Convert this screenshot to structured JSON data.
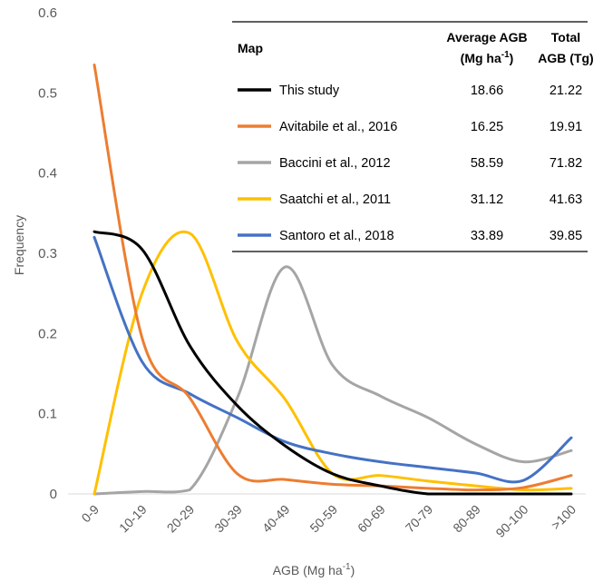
{
  "chart_data": {
    "type": "line",
    "xlabel": "AGB (Mg ha",
    "xlabel_sup": "-1",
    "xlabel_close": ")",
    "ylabel": "Frequency",
    "ylim": [
      0,
      0.6
    ],
    "yticks": [
      "0",
      "0.1",
      "0.2",
      "0.3",
      "0.4",
      "0.5",
      "0.6"
    ],
    "categories": [
      "0-9",
      "10-19",
      "20-29",
      "30-39",
      "40-49",
      "50-59",
      "60-69",
      "70-79",
      "80-89",
      "90-100",
      ">100"
    ],
    "grid": false,
    "series": [
      {
        "name": "This study",
        "color": "#000000",
        "values": [
          0.327,
          0.305,
          0.185,
          0.11,
          0.06,
          0.025,
          0.01,
          0.0,
          0.0,
          0.0,
          0.0
        ]
      },
      {
        "name": "Avitabile et al., 2016",
        "color": "#ED7D31",
        "values": [
          0.535,
          0.195,
          0.12,
          0.025,
          0.018,
          0.012,
          0.01,
          0.007,
          0.005,
          0.008,
          0.023
        ]
      },
      {
        "name": "Baccini et al., 2012",
        "color": "#A5A5A5",
        "values": [
          0.0,
          0.003,
          0.005,
          0.12,
          0.283,
          0.16,
          0.122,
          0.095,
          0.062,
          0.04,
          0.054
        ]
      },
      {
        "name": "Saatchi et al., 2011",
        "color": "#FFC000",
        "values": [
          0.0,
          0.25,
          0.325,
          0.19,
          0.118,
          0.025,
          0.023,
          0.016,
          0.01,
          0.005,
          0.007
        ]
      },
      {
        "name": "Santoro et al., 2018",
        "color": "#4472C4",
        "values": [
          0.32,
          0.165,
          0.125,
          0.095,
          0.065,
          0.05,
          0.04,
          0.033,
          0.026,
          0.017,
          0.07
        ]
      }
    ]
  },
  "table": {
    "col_map": "Map",
    "col_avg_line1": "Average AGB",
    "col_avg_line2": "(Mg ha",
    "col_avg_sup": "-1",
    "col_avg_close": ")",
    "col_total_line1": "Total",
    "col_total_line2": "AGB (Tg)",
    "rows": [
      {
        "label": "This study",
        "avg": "18.66",
        "total": "21.22"
      },
      {
        "label": "Avitabile et al., 2016",
        "avg": "16.25",
        "total": "19.91"
      },
      {
        "label": "Baccini et al., 2012",
        "avg": "58.59",
        "total": "71.82"
      },
      {
        "label": "Saatchi et al., 2011",
        "avg": "31.12",
        "total": "41.63"
      },
      {
        "label": "Santoro et al., 2018",
        "avg": "33.89",
        "total": "39.85"
      }
    ]
  }
}
